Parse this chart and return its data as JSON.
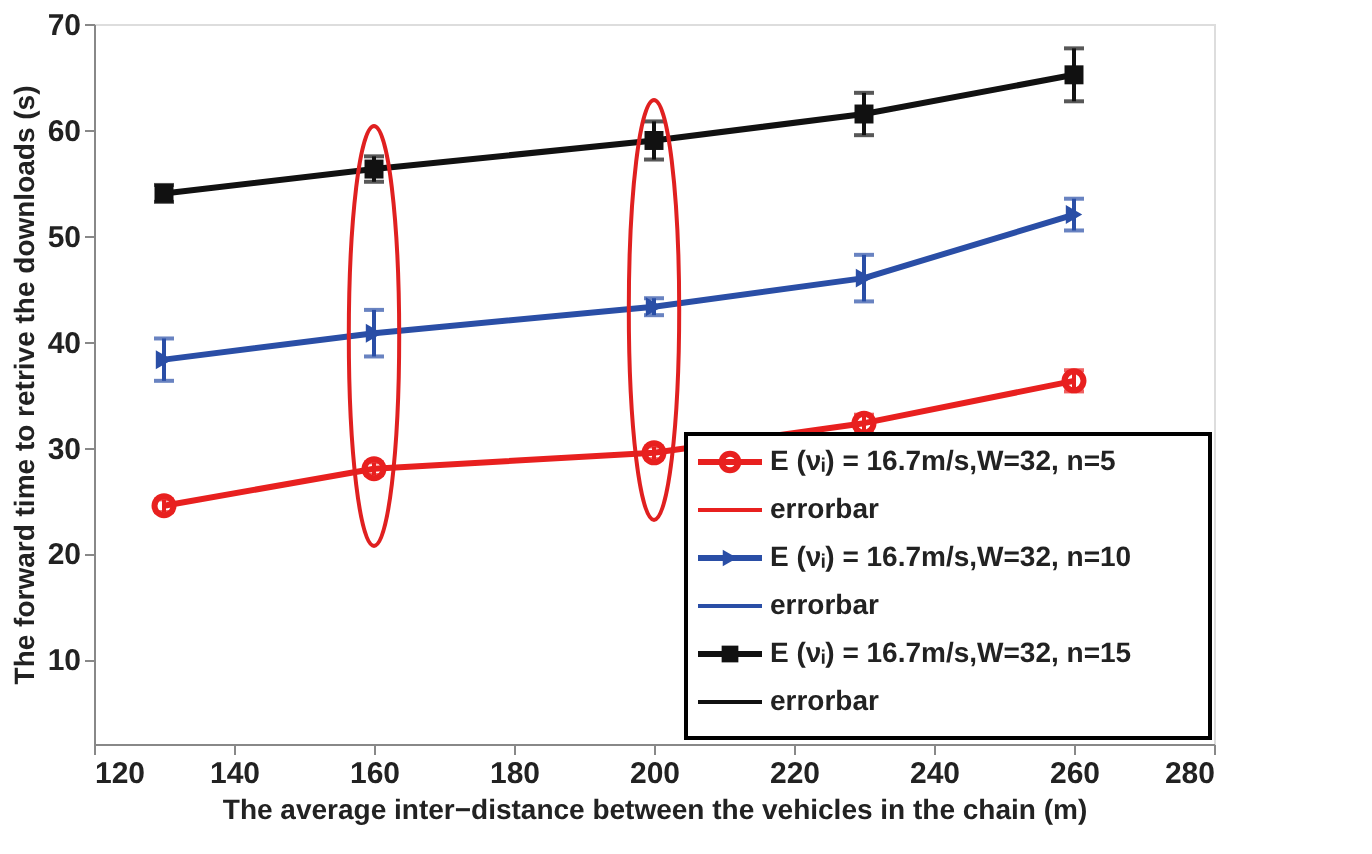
{
  "chart_data": {
    "type": "line",
    "xlabel": "The average inter−distance between the vehicles in the chain (m)",
    "ylabel": "The forward time to retrive the downloads (s)",
    "x": [
      130,
      160,
      200,
      230,
      260
    ],
    "series": [
      {
        "name": "E (νᵢ) = 16.7m/s,W=32, n=5",
        "color": "#e8201f",
        "marker": "circle",
        "values": [
          24.5,
          28.0,
          29.5,
          32.3,
          36.3
        ],
        "errors": [
          0.6,
          0.6,
          0.6,
          0.8,
          1.0
        ]
      },
      {
        "name": "E (νᵢ) = 16.7m/s,W=32, n=10",
        "color": "#2a4ea6",
        "marker": "triangle",
        "values": [
          38.3,
          40.8,
          43.3,
          46.0,
          52.0
        ],
        "errors": [
          2.0,
          2.2,
          0.8,
          2.2,
          1.5
        ]
      },
      {
        "name": "E (νᵢ) = 16.7m/s,W=32, n=15",
        "color": "#111111",
        "marker": "square",
        "values": [
          54.0,
          56.3,
          59.0,
          61.5,
          65.2
        ],
        "errors": [
          0.8,
          1.2,
          1.8,
          2.0,
          2.5
        ]
      }
    ],
    "annotations": [
      "errorbar",
      "errorbar",
      "errorbar"
    ],
    "xlim": [
      120,
      280
    ],
    "xticks": [
      120,
      140,
      160,
      180,
      200,
      220,
      240,
      260,
      280
    ],
    "ylim": [
      2,
      70
    ],
    "yticks": [
      10,
      20,
      30,
      40,
      50,
      60,
      70
    ],
    "grid": false,
    "legend": "bottom right",
    "line_style": "solid"
  }
}
